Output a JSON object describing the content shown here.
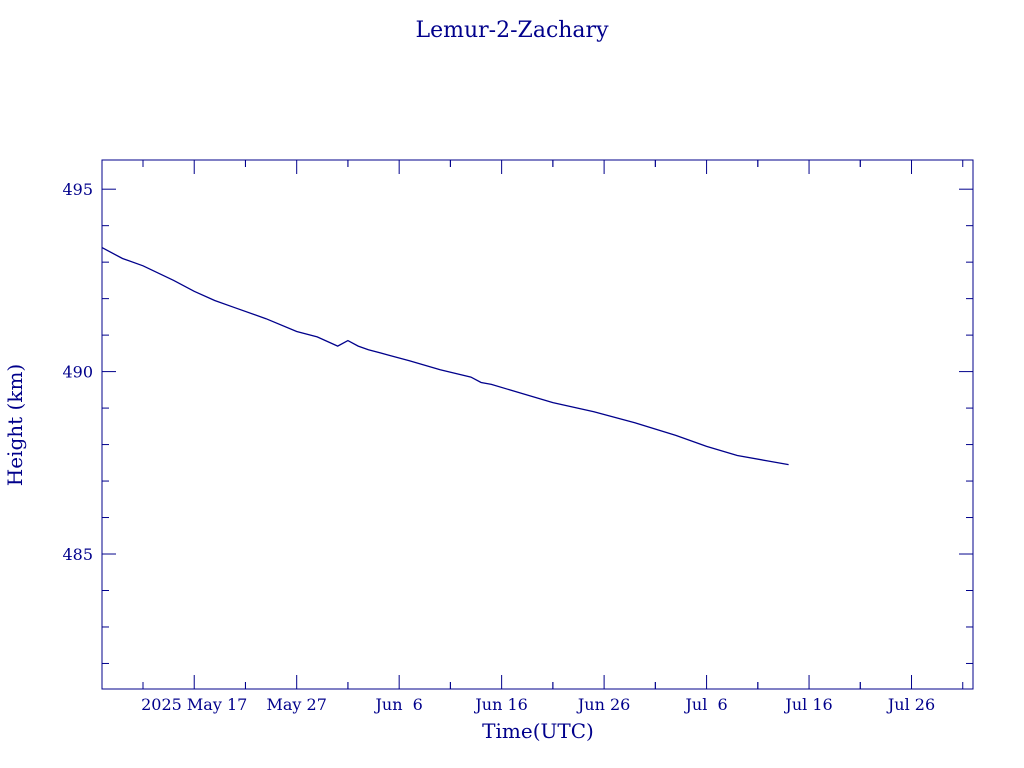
{
  "chart_data": {
    "type": "line",
    "title": "Lemur-2-Zachary",
    "xlabel": "Time(UTC)",
    "ylabel": "Height (km)",
    "xlim": [
      "2025-05-08",
      "2025-08-01"
    ],
    "ylim": [
      481.3,
      495.8
    ],
    "x_ticks": [
      {
        "label": "2025 May 17",
        "date": "2025-05-17"
      },
      {
        "label": "May 27",
        "date": "2025-05-27"
      },
      {
        "label": "Jun  6",
        "date": "2025-06-06"
      },
      {
        "label": "Jun 16",
        "date": "2025-06-16"
      },
      {
        "label": "Jun 26",
        "date": "2025-06-26"
      },
      {
        "label": "Jul  6",
        "date": "2025-07-06"
      },
      {
        "label": "Jul 16",
        "date": "2025-07-16"
      },
      {
        "label": "Jul 26",
        "date": "2025-07-26"
      }
    ],
    "y_ticks": [
      485,
      490,
      495
    ],
    "series": [
      {
        "color": "#00008b",
        "x": [
          "2025-05-08",
          "2025-05-10",
          "2025-05-12",
          "2025-05-15",
          "2025-05-17",
          "2025-05-19",
          "2025-05-21",
          "2025-05-24",
          "2025-05-27",
          "2025-05-29",
          "2025-05-31",
          "2025-06-01",
          "2025-06-02",
          "2025-06-03",
          "2025-06-05",
          "2025-06-07",
          "2025-06-10",
          "2025-06-13",
          "2025-06-14",
          "2025-06-15",
          "2025-06-18",
          "2025-06-21",
          "2025-06-25",
          "2025-06-29",
          "2025-07-03",
          "2025-07-06",
          "2025-07-09",
          "2025-07-12",
          "2025-07-14"
        ],
        "y": [
          493.4,
          493.1,
          492.9,
          492.5,
          492.2,
          491.95,
          491.75,
          491.45,
          491.1,
          490.95,
          490.7,
          490.85,
          490.7,
          490.6,
          490.45,
          490.3,
          490.05,
          489.85,
          489.7,
          489.65,
          489.4,
          489.15,
          488.9,
          488.6,
          488.25,
          487.95,
          487.7,
          487.55,
          487.45
        ]
      }
    ]
  }
}
